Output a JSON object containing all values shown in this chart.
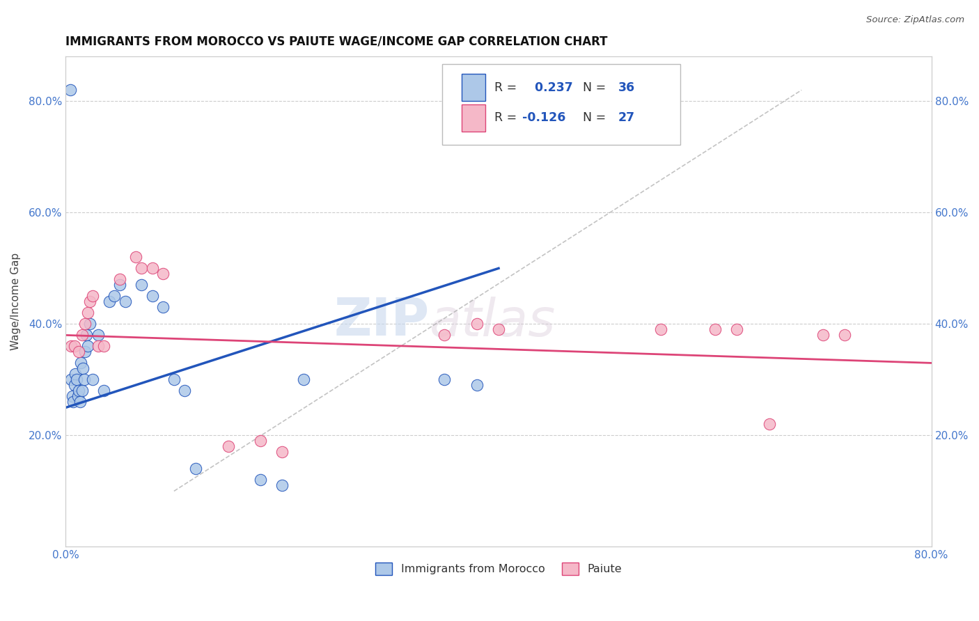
{
  "title": "IMMIGRANTS FROM MOROCCO VS PAIUTE WAGE/INCOME GAP CORRELATION CHART",
  "source": "Source: ZipAtlas.com",
  "ylabel": "Wage/Income Gap",
  "legend_label1": "Immigrants from Morocco",
  "legend_label2": "Paiute",
  "r1": 0.237,
  "n1": 36,
  "r2": -0.126,
  "n2": 27,
  "xlim": [
    0.0,
    0.8
  ],
  "ylim": [
    0.0,
    0.88
  ],
  "yticks": [
    0.2,
    0.4,
    0.6,
    0.8
  ],
  "ytick_labels": [
    "20.0%",
    "40.0%",
    "60.0%",
    "80.0%"
  ],
  "color_blue": "#adc8e8",
  "color_pink": "#f5b8c8",
  "line_blue": "#2255bb",
  "line_pink": "#dd4477",
  "watermark_zip": "ZIP",
  "watermark_atlas": "atlas",
  "blue_scatter_x": [
    0.004,
    0.005,
    0.006,
    0.007,
    0.008,
    0.009,
    0.01,
    0.011,
    0.012,
    0.013,
    0.014,
    0.015,
    0.016,
    0.017,
    0.018,
    0.019,
    0.02,
    0.022,
    0.025,
    0.03,
    0.035,
    0.04,
    0.045,
    0.05,
    0.055,
    0.07,
    0.08,
    0.09,
    0.1,
    0.11,
    0.12,
    0.18,
    0.2,
    0.22,
    0.35,
    0.38
  ],
  "blue_scatter_y": [
    0.82,
    0.3,
    0.27,
    0.26,
    0.29,
    0.31,
    0.3,
    0.27,
    0.28,
    0.26,
    0.33,
    0.28,
    0.32,
    0.3,
    0.35,
    0.38,
    0.36,
    0.4,
    0.3,
    0.38,
    0.28,
    0.44,
    0.45,
    0.47,
    0.44,
    0.47,
    0.45,
    0.43,
    0.3,
    0.28,
    0.14,
    0.12,
    0.11,
    0.3,
    0.3,
    0.29
  ],
  "pink_scatter_x": [
    0.005,
    0.008,
    0.012,
    0.015,
    0.018,
    0.02,
    0.022,
    0.025,
    0.03,
    0.035,
    0.05,
    0.065,
    0.07,
    0.08,
    0.09,
    0.15,
    0.18,
    0.2,
    0.35,
    0.38,
    0.4,
    0.55,
    0.6,
    0.62,
    0.65,
    0.7,
    0.72
  ],
  "pink_scatter_y": [
    0.36,
    0.36,
    0.35,
    0.38,
    0.4,
    0.42,
    0.44,
    0.45,
    0.36,
    0.36,
    0.48,
    0.52,
    0.5,
    0.5,
    0.49,
    0.18,
    0.19,
    0.17,
    0.38,
    0.4,
    0.39,
    0.39,
    0.39,
    0.39,
    0.22,
    0.38,
    0.38
  ],
  "dashed_line_x": [
    0.1,
    0.68
  ],
  "dashed_line_y": [
    0.1,
    0.82
  ],
  "blue_line_x0": 0.0,
  "blue_line_y0": 0.25,
  "blue_line_x1": 0.4,
  "blue_line_y1": 0.5,
  "pink_line_x0": 0.0,
  "pink_line_y0": 0.38,
  "pink_line_x1": 0.8,
  "pink_line_y1": 0.33
}
